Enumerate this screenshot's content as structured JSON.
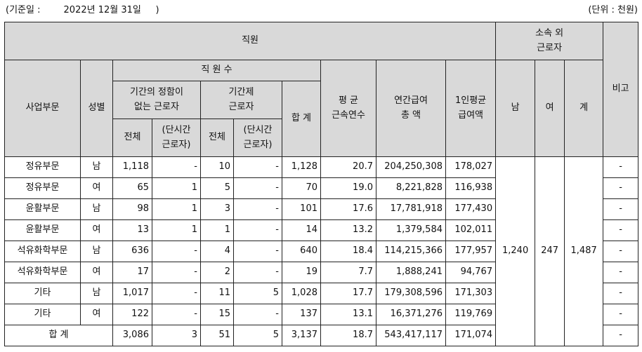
{
  "header": {
    "base_date": "(기준일 :        2022년 12월 31일     )",
    "unit": "(단위 : 천원)"
  },
  "columns": {
    "employees": "직원",
    "outside": "소속 외\n근로자",
    "note": "비고",
    "division": "사업부문",
    "gender": "성별",
    "headcount": "직 원 수",
    "permanent": "기간의 정함이\n없는 근로자",
    "fixed_term": "기간제\n근로자",
    "total_cnt": "합 계",
    "avg_tenure": "평 균\n근속연수",
    "annual_pay": "연간급여\n총 액",
    "per_capita": "1인평균\n급여액",
    "male": "남",
    "female": "여",
    "out_total": "계",
    "all": "전체",
    "part_time": "(단시간\n근로자)"
  },
  "rows": [
    {
      "division": "정유부문",
      "gender": "남",
      "perm": "1,118",
      "perm_pt": "-",
      "fixed": "10",
      "fixed_pt": "-",
      "total": "1,128",
      "tenure": "20.7",
      "pay": "204,250,308",
      "avg_pay": "178,027",
      "note": "-"
    },
    {
      "division": "정유부문",
      "gender": "여",
      "perm": "65",
      "perm_pt": "1",
      "fixed": "5",
      "fixed_pt": "-",
      "total": "70",
      "tenure": "19.0",
      "pay": "8,221,828",
      "avg_pay": "116,938",
      "note": "-"
    },
    {
      "division": "윤활부문",
      "gender": "남",
      "perm": "98",
      "perm_pt": "1",
      "fixed": "3",
      "fixed_pt": "-",
      "total": "101",
      "tenure": "17.6",
      "pay": "17,781,918",
      "avg_pay": "177,430",
      "note": "-"
    },
    {
      "division": "윤활부문",
      "gender": "여",
      "perm": "13",
      "perm_pt": "1",
      "fixed": "1",
      "fixed_pt": "-",
      "total": "14",
      "tenure": "13.2",
      "pay": "1,379,584",
      "avg_pay": "102,011",
      "note": "-"
    },
    {
      "division": "석유화학부문",
      "gender": "남",
      "perm": "636",
      "perm_pt": "-",
      "fixed": "4",
      "fixed_pt": "-",
      "total": "640",
      "tenure": "18.4",
      "pay": "114,215,366",
      "avg_pay": "177,957",
      "note": "-"
    },
    {
      "division": "석유화학부문",
      "gender": "여",
      "perm": "17",
      "perm_pt": "-",
      "fixed": "2",
      "fixed_pt": "-",
      "total": "19",
      "tenure": "7.7",
      "pay": "1,888,241",
      "avg_pay": "94,767",
      "note": "-"
    },
    {
      "division": "기타",
      "gender": "남",
      "perm": "1,017",
      "perm_pt": "-",
      "fixed": "11",
      "fixed_pt": "5",
      "total": "1,028",
      "tenure": "17.7",
      "pay": "179,308,596",
      "avg_pay": "171,303",
      "note": "-"
    },
    {
      "division": "기타",
      "gender": "여",
      "perm": "122",
      "perm_pt": "-",
      "fixed": "15",
      "fixed_pt": "-",
      "total": "137",
      "tenure": "13.1",
      "pay": "16,371,276",
      "avg_pay": "119,769",
      "note": "-"
    }
  ],
  "outside_workers": {
    "male": "1,240",
    "female": "247",
    "total": "1,487"
  },
  "total_row": {
    "label": "합 계",
    "perm": "3,086",
    "perm_pt": "3",
    "fixed": "51",
    "fixed_pt": "5",
    "total": "3,137",
    "tenure": "18.7",
    "pay": "543,417,117",
    "avg_pay": "171,074",
    "note": "-"
  }
}
